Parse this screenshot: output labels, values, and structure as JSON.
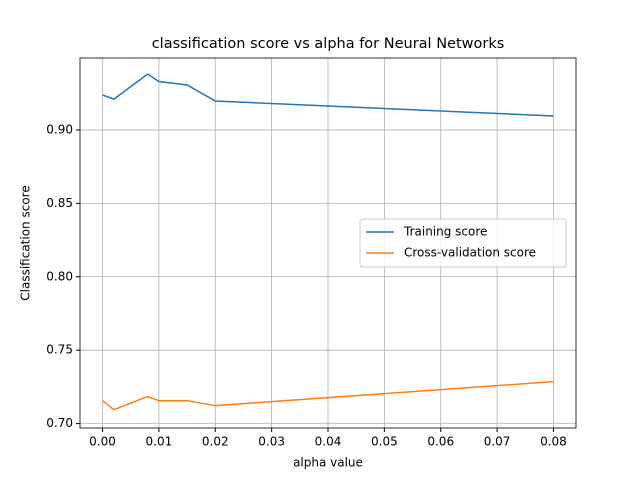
{
  "chart_data": {
    "type": "line",
    "title": "classification score vs alpha for Neural Networks",
    "xlabel": "alpha value",
    "ylabel": "Classification score",
    "x": [
      0,
      0.002,
      0.008,
      0.01,
      0.015,
      0.02,
      0.08
    ],
    "series": [
      {
        "name": "Training score",
        "color": "#1f77b4",
        "values": [
          0.9238,
          0.921,
          0.938,
          0.933,
          0.9306,
          0.9197,
          0.9095
        ]
      },
      {
        "name": "Cross-validation score",
        "color": "#ff7f0e",
        "values": [
          0.7156,
          0.7095,
          0.7184,
          0.7156,
          0.7156,
          0.7122,
          0.7286
        ]
      }
    ],
    "xlim": [
      -0.004,
      0.084
    ],
    "ylim": [
      0.697,
      0.949
    ],
    "xticks": [
      {
        "value": 0,
        "label": "0.00"
      },
      {
        "value": 0.01,
        "label": "0.01"
      },
      {
        "value": 0.02,
        "label": "0.02"
      },
      {
        "value": 0.03,
        "label": "0.03"
      },
      {
        "value": 0.04,
        "label": "0.04"
      },
      {
        "value": 0.05,
        "label": "0.05"
      },
      {
        "value": 0.06,
        "label": "0.06"
      },
      {
        "value": 0.07,
        "label": "0.07"
      },
      {
        "value": 0.08,
        "label": "0.08"
      }
    ],
    "yticks": [
      {
        "value": 0.7,
        "label": "0.70"
      },
      {
        "value": 0.75,
        "label": "0.75"
      },
      {
        "value": 0.8,
        "label": "0.80"
      },
      {
        "value": 0.85,
        "label": "0.85"
      },
      {
        "value": 0.9,
        "label": "0.90"
      }
    ],
    "grid": true,
    "legend": "center right"
  }
}
